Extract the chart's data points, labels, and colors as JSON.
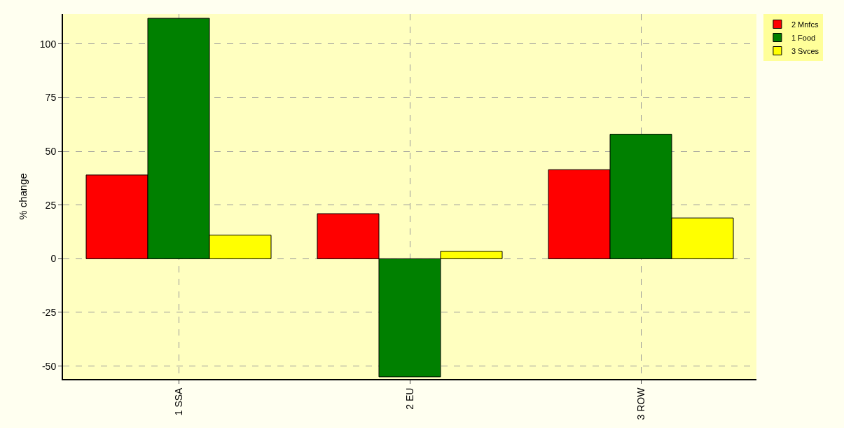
{
  "chart_data": {
    "type": "bar",
    "ylabel": "% change",
    "categories": [
      "1 SSA",
      "2 EU",
      "3 ROW"
    ],
    "series": [
      {
        "name": "2 Mnfcs",
        "color": "#ff0000",
        "values": [
          39,
          21,
          41.5
        ]
      },
      {
        "name": "1 Food",
        "color": "#008000",
        "values": [
          112,
          -55,
          58
        ]
      },
      {
        "name": "3 Svces",
        "color": "#ffff00",
        "values": [
          11,
          3.5,
          19
        ]
      }
    ],
    "ylim": [
      -56,
      114
    ],
    "yticks": [
      -50,
      -25,
      0,
      25,
      50,
      75,
      100
    ],
    "grid": true,
    "legend": "top right"
  }
}
